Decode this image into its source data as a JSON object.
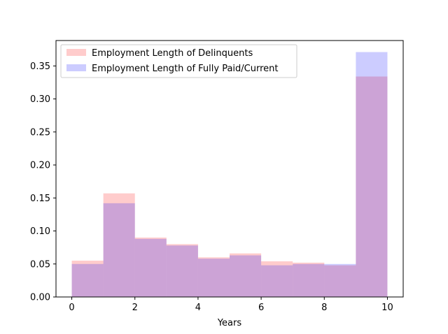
{
  "chart_data": {
    "type": "bar",
    "title": "",
    "xlabel": "Years",
    "ylabel": "",
    "xlim": [
      -0.5,
      10.5
    ],
    "ylim": [
      0,
      0.3885
    ],
    "bin_edges": [
      0,
      1,
      2,
      3,
      4,
      5,
      6,
      7,
      8,
      9,
      10
    ],
    "x_ticks": [
      0,
      2,
      4,
      6,
      8,
      10
    ],
    "x_tick_labels": [
      "0",
      "2",
      "4",
      "6",
      "8",
      "10"
    ],
    "y_ticks": [
      0.0,
      0.05,
      0.1,
      0.15,
      0.2,
      0.25,
      0.3,
      0.35
    ],
    "y_tick_labels": [
      "0.00",
      "0.05",
      "0.10",
      "0.15",
      "0.20",
      "0.25",
      "0.30",
      "0.35"
    ],
    "legend_position": "top-left",
    "grid": false,
    "series": [
      {
        "name": "Employment Length of Delinquents",
        "color": "#ff0000",
        "opacity": 0.2,
        "values": [
          0.055,
          0.157,
          0.09,
          0.08,
          0.06,
          0.066,
          0.054,
          0.052,
          0.048,
          0.334
        ]
      },
      {
        "name": "Employment Length of Fully Paid/Current",
        "color": "#0000ff",
        "opacity": 0.2,
        "values": [
          0.05,
          0.142,
          0.088,
          0.078,
          0.058,
          0.063,
          0.048,
          0.05,
          0.05,
          0.371
        ]
      }
    ]
  }
}
